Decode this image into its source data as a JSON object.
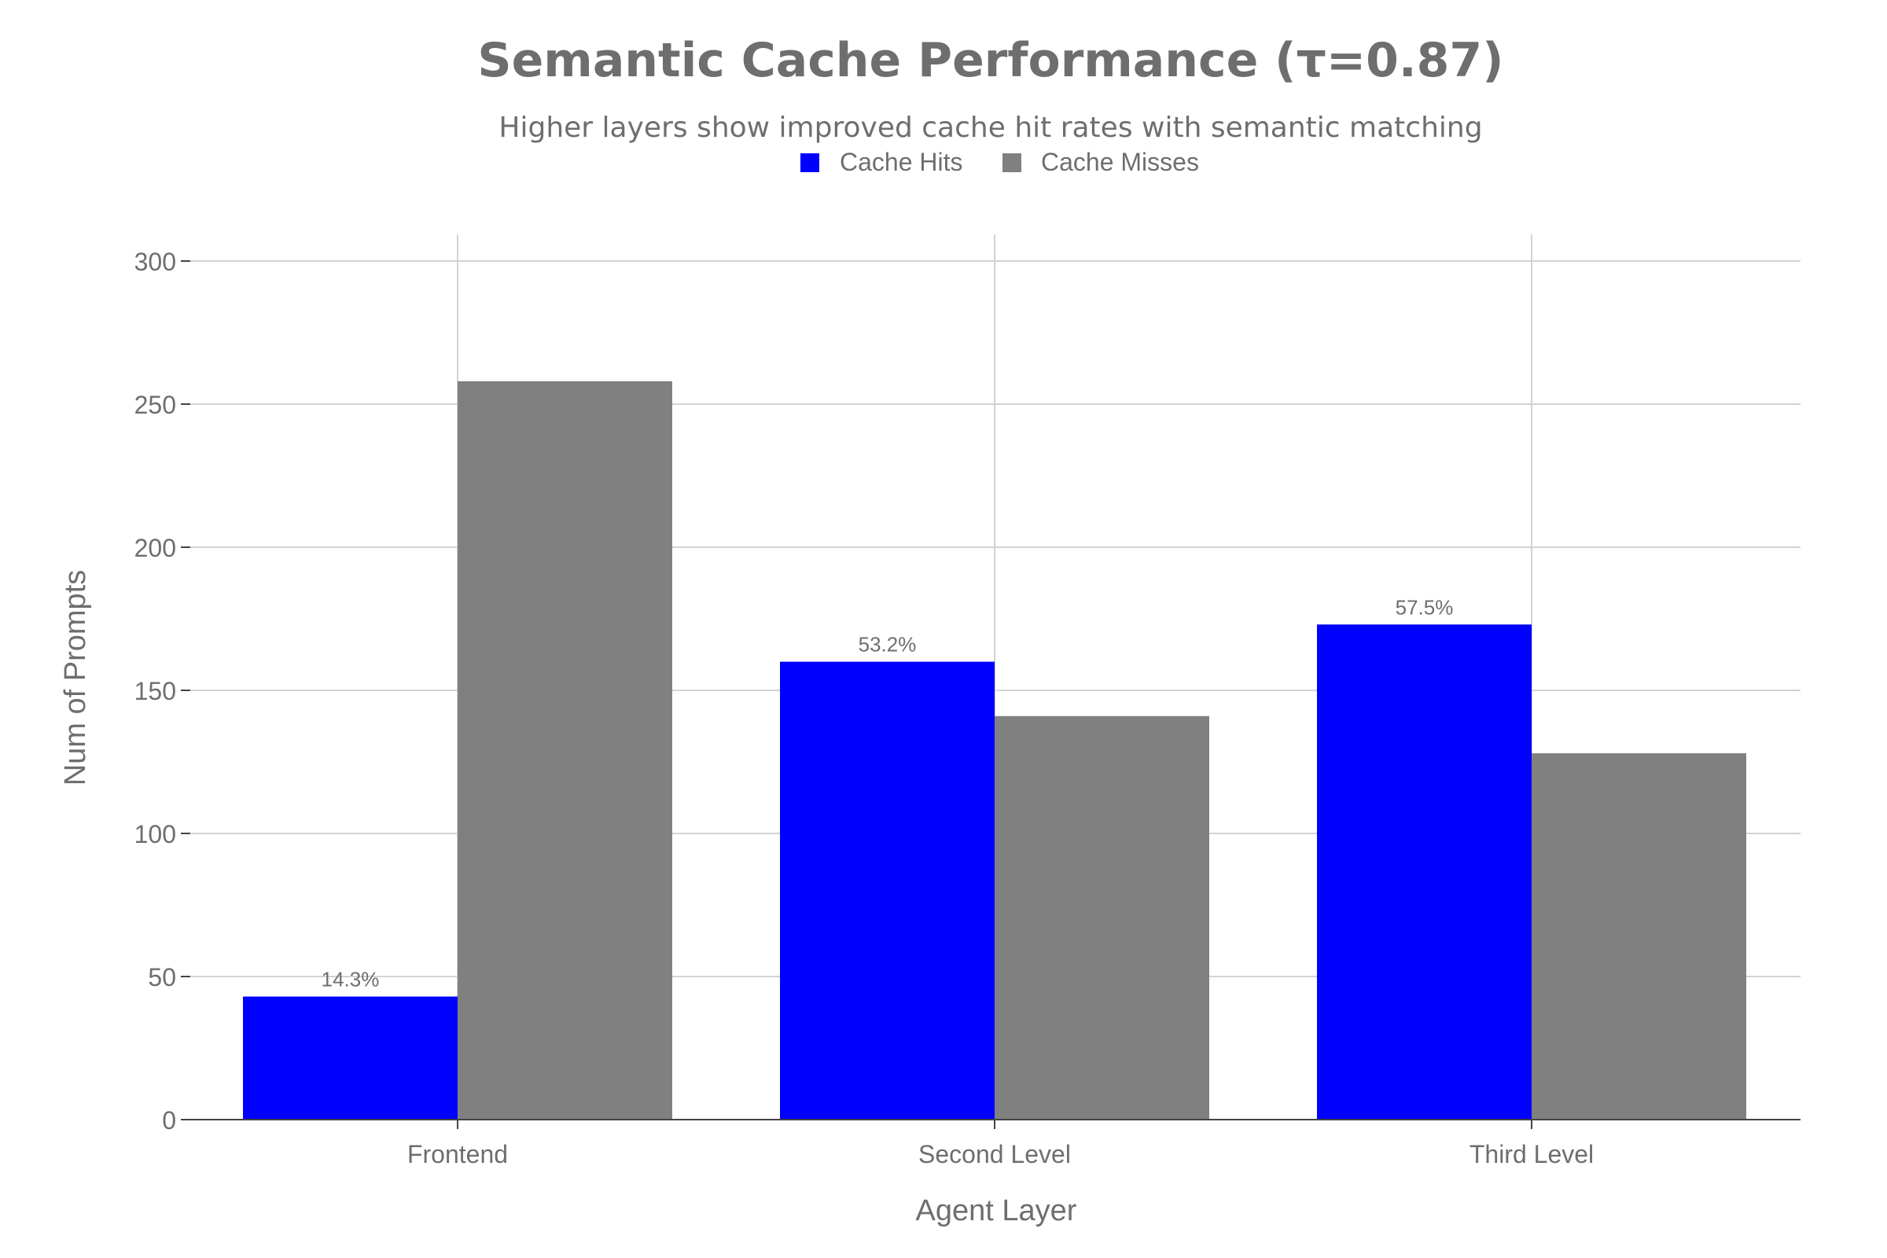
{
  "chart_data": {
    "type": "bar",
    "title": "Semantic Cache Performance (τ=0.87)",
    "subtitle": "Higher layers show improved cache hit rates with semantic matching",
    "xlabel": "Agent Layer",
    "ylabel": "Num of Prompts",
    "categories": [
      "Frontend",
      "Second Level",
      "Third Level"
    ],
    "series": [
      {
        "name": "Cache Hits",
        "color": "#0000ff",
        "values": [
          43,
          160,
          173
        ],
        "data_labels": [
          "14.3%",
          "53.2%",
          "57.5%"
        ]
      },
      {
        "name": "Cache Misses",
        "color": "#808080",
        "values": [
          258,
          141,
          128
        ]
      }
    ],
    "ylim": [
      0,
      310
    ],
    "yticks": [
      0,
      50,
      100,
      150,
      200,
      250,
      300
    ],
    "grid": true,
    "legend_position": "top-center"
  }
}
